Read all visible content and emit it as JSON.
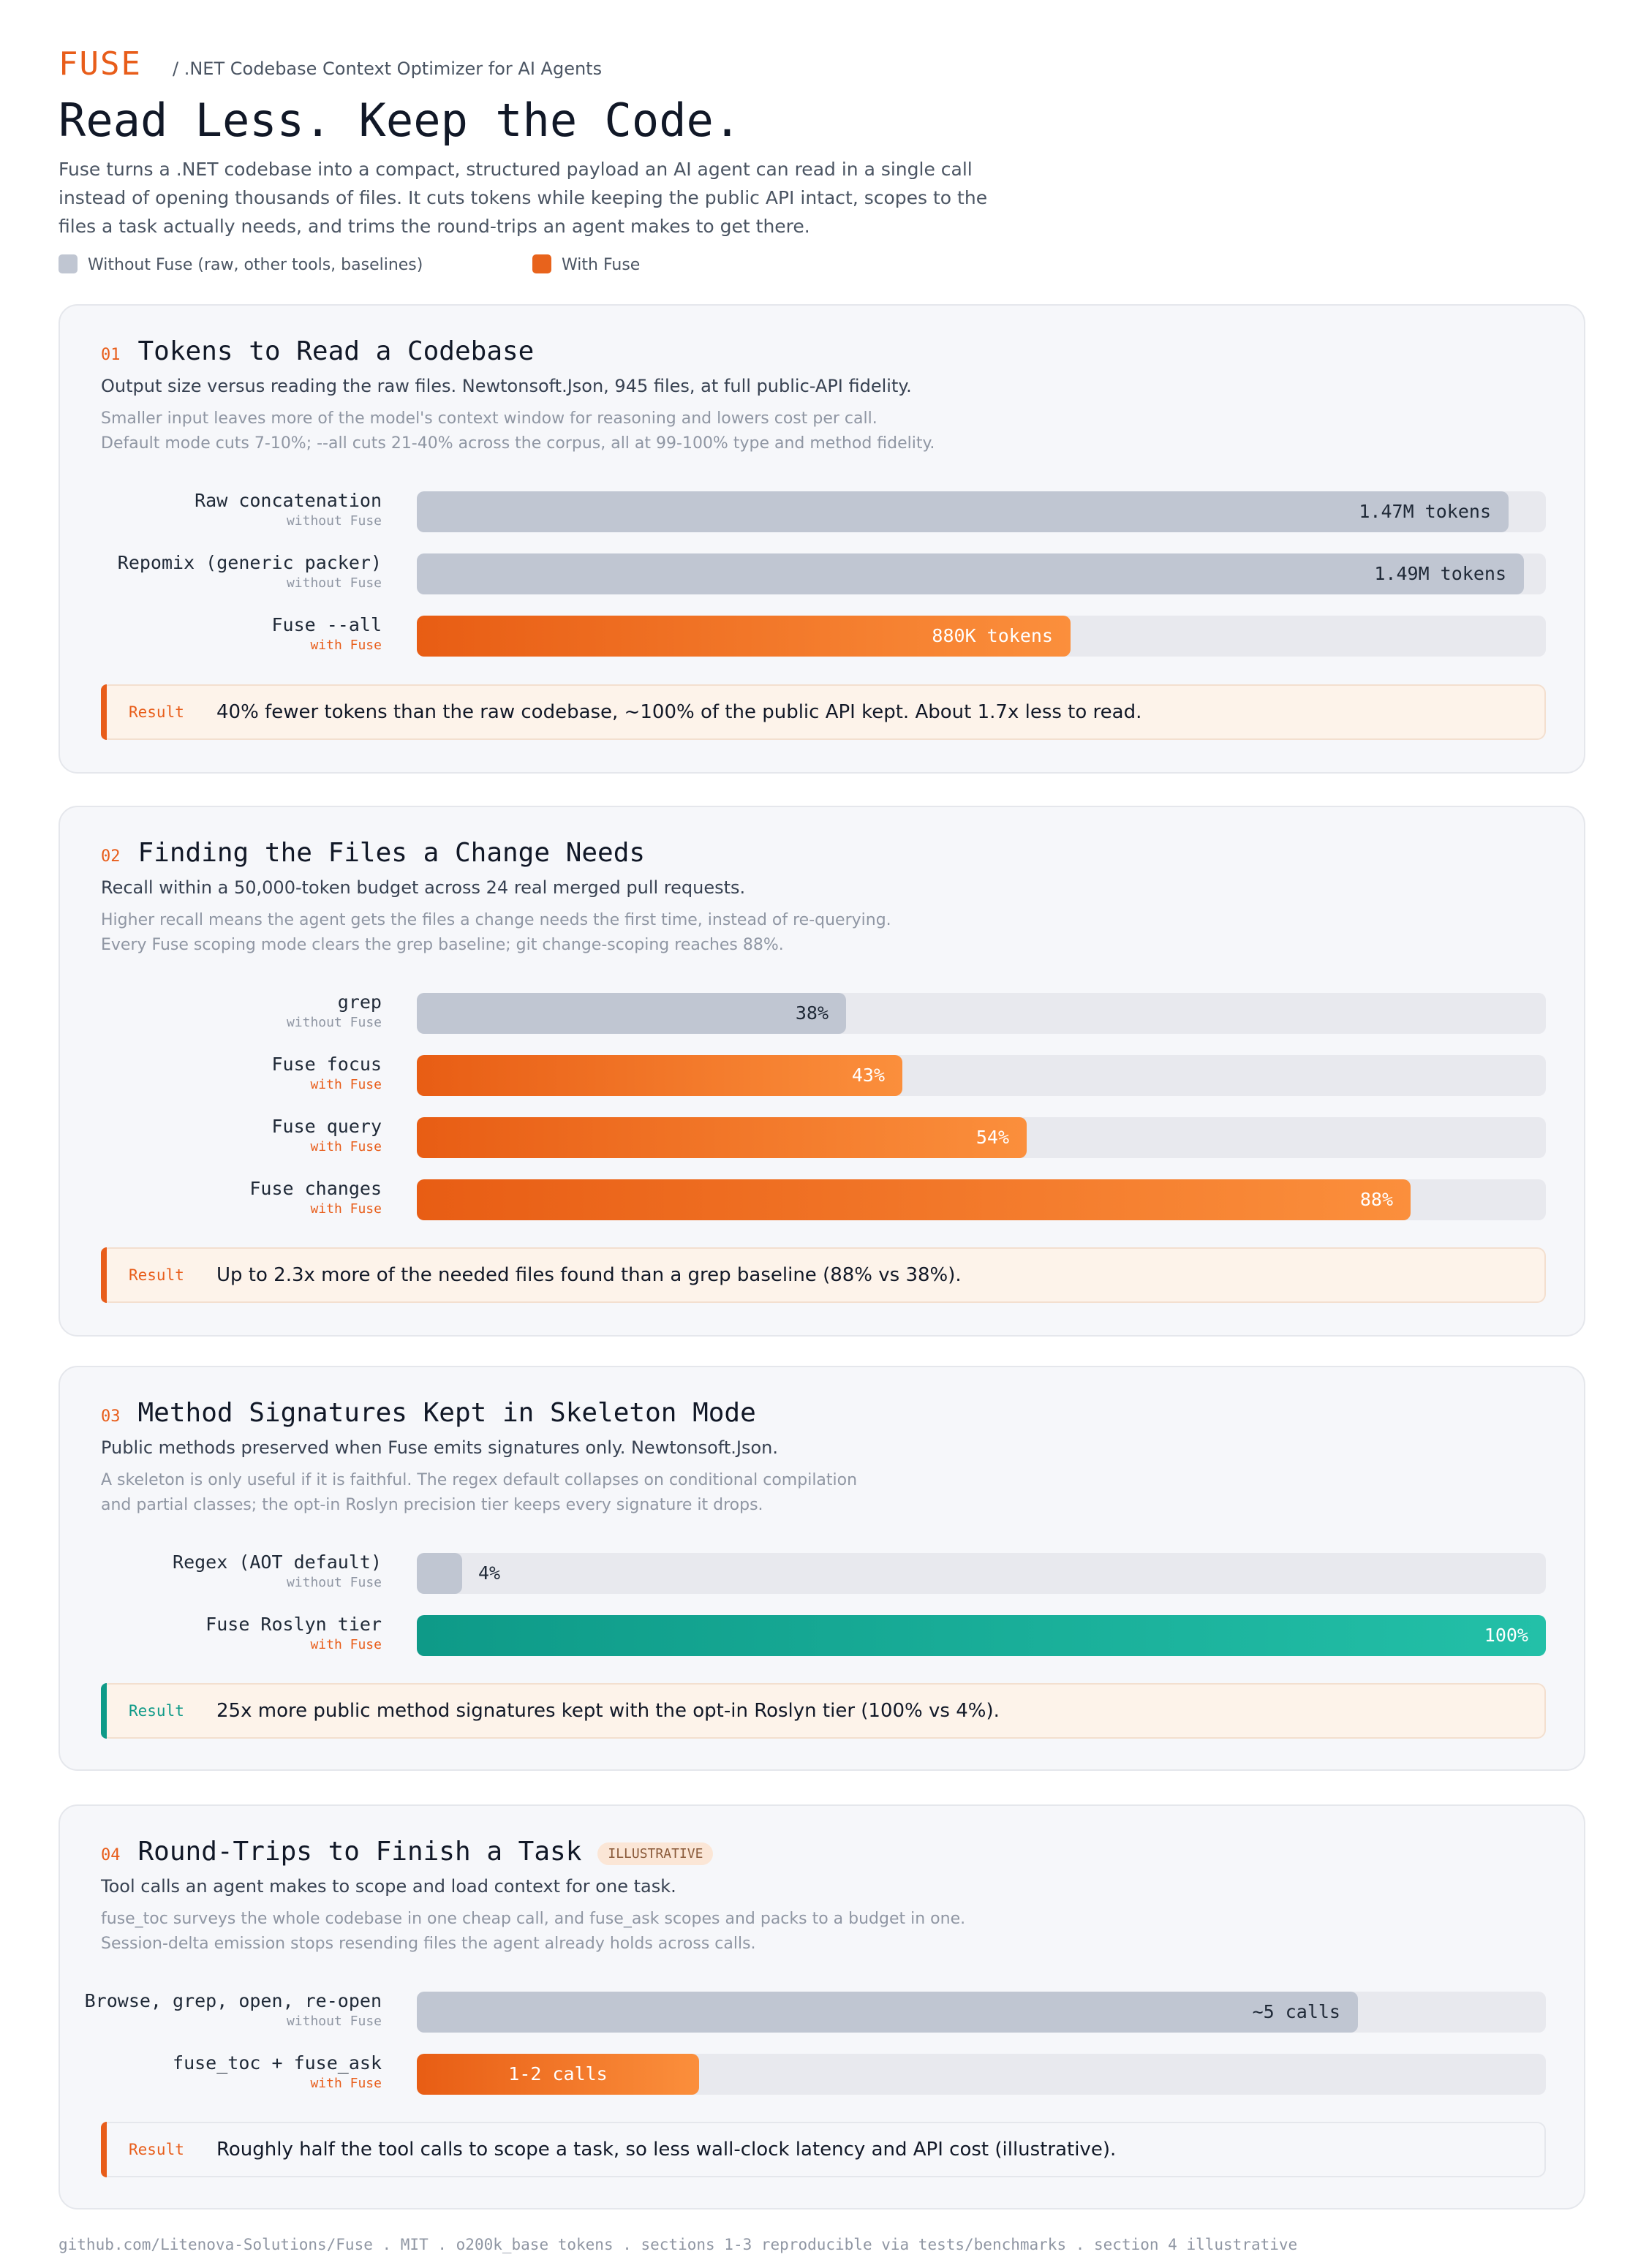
{
  "header": {
    "brand": "FUSE",
    "subtitle": "/ .NET Codebase Context Optimizer for AI Agents",
    "headline": "Read Less. Keep the Code.",
    "intro": "Fuse turns a .NET codebase into a compact, structured payload an AI agent can read in a single call instead of opening thousands of files. It cuts tokens while keeping the public API intact, scopes to the files a task actually needs, and trims the round-trips an agent makes to get there."
  },
  "legend": [
    {
      "label": "Without Fuse (raw, other tools, baselines)",
      "color": "#c0c6d2"
    },
    {
      "label": "With Fuse",
      "color": "#e8631c"
    }
  ],
  "sections": [
    {
      "num": "01",
      "title": "Tokens to Read a Codebase",
      "desc": "Output size versus reading the raw files. Newtonsoft.Json, 945 files, at full public-API fidelity.",
      "note1": "Smaller input leaves more of the model's context window for reasoning and lowers cost per call.",
      "note2": "Default mode cuts 7-10%; --all cuts 21-40% across the corpus, all at 99-100% type and method fidelity.",
      "result_tag": "Result",
      "result": "40% fewer tokens than the raw codebase, ~100% of the public API kept. About 1.7x less to read."
    },
    {
      "num": "02",
      "title": "Finding the Files a Change Needs",
      "desc": "Recall within a 50,000-token budget across 24 real merged pull requests.",
      "note1": "Higher recall means the agent gets the files a change needs the first time, instead of re-querying.",
      "note2": "Every Fuse scoping mode clears the grep baseline; git change-scoping reaches 88%.",
      "result_tag": "Result",
      "result": "Up to 2.3x more of the needed files found than a grep baseline (88% vs 38%)."
    },
    {
      "num": "03",
      "title": "Method Signatures Kept in Skeleton Mode",
      "desc": "Public methods preserved when Fuse emits signatures only. Newtonsoft.Json.",
      "note1": "A skeleton is only useful if it is faithful. The regex default collapses on conditional compilation",
      "note2": "and partial classes; the opt-in Roslyn precision tier keeps every signature it drops.",
      "result_tag": "Result",
      "result": "25x more public method signatures kept with the opt-in Roslyn tier (100% vs 4%)."
    },
    {
      "num": "04",
      "title": "Round-Trips to Finish a Task",
      "badge": "ILLUSTRATIVE",
      "desc": "Tool calls an agent makes to scope and load context for one task.",
      "note1": "fuse_toc surveys the whole codebase in one cheap call, and fuse_ask scopes and packs to a budget in one.",
      "note2": "Session-delta emission stops resending files the agent already holds across calls.",
      "result_tag": "Result",
      "result": "Roughly half the tool calls to scope a task, so less wall-clock latency and API cost (illustrative)."
    }
  ],
  "chart_data": [
    {
      "type": "bar",
      "orientation": "horizontal",
      "title": "Tokens to Read a Codebase",
      "categories": [
        "Raw concatenation",
        "Repomix (generic packer)",
        "Fuse --all"
      ],
      "groups": [
        "without Fuse",
        "without Fuse",
        "with Fuse"
      ],
      "values": [
        1470000,
        1490000,
        880000
      ],
      "value_labels": [
        "1.47M tokens",
        "1.49M tokens",
        "880K tokens"
      ],
      "xlim": [
        0,
        1520000
      ]
    },
    {
      "type": "bar",
      "orientation": "horizontal",
      "title": "Finding the Files a Change Needs",
      "categories": [
        "grep",
        "Fuse focus",
        "Fuse query",
        "Fuse changes"
      ],
      "groups": [
        "without Fuse",
        "with Fuse",
        "with Fuse",
        "with Fuse"
      ],
      "values": [
        38,
        43,
        54,
        88
      ],
      "value_labels": [
        "38%",
        "43%",
        "54%",
        "88%"
      ],
      "xlim": [
        0,
        100
      ]
    },
    {
      "type": "bar",
      "orientation": "horizontal",
      "title": "Method Signatures Kept in Skeleton Mode",
      "categories": [
        "Regex (AOT default)",
        "Fuse Roslyn tier"
      ],
      "groups": [
        "without Fuse",
        "with Fuse"
      ],
      "values": [
        4,
        100
      ],
      "value_labels": [
        "4%",
        "100%"
      ],
      "xlim": [
        0,
        100
      ]
    },
    {
      "type": "bar",
      "orientation": "horizontal",
      "title": "Round-Trips to Finish a Task",
      "categories": [
        "Browse, grep, open, re-open",
        "fuse_toc + fuse_ask"
      ],
      "groups": [
        "without Fuse",
        "with Fuse"
      ],
      "values": [
        5,
        1.5
      ],
      "value_labels": [
        "~5 calls",
        "1-2 calls"
      ],
      "xlim": [
        0,
        6
      ]
    }
  ],
  "footer": "github.com/Litenova-Solutions/Fuse . MIT . o200k_base tokens . sections 1-3 reproducible via tests/benchmarks . section 4 illustrative"
}
